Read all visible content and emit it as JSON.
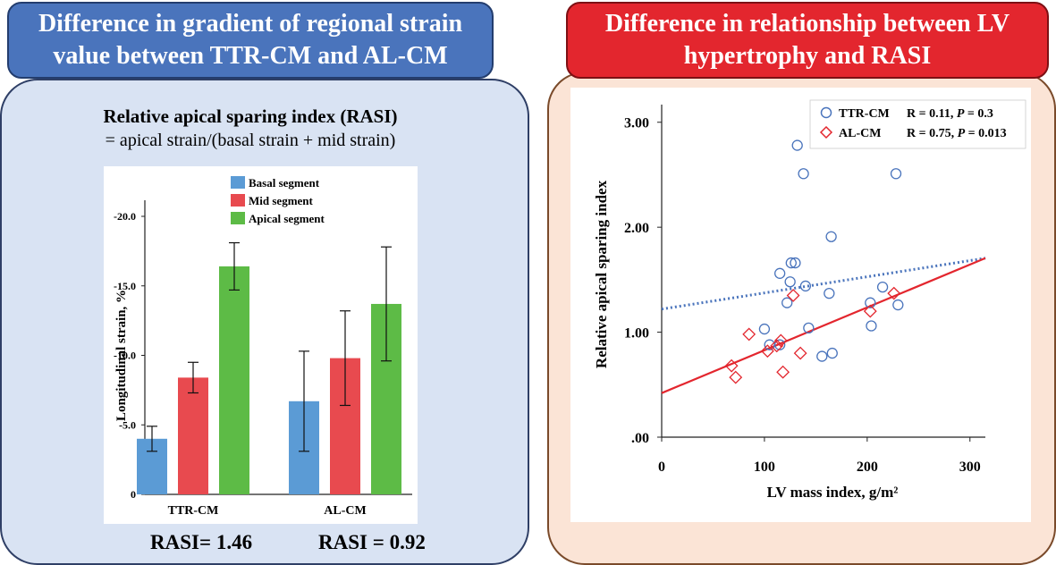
{
  "left": {
    "banner": "Difference in gradient of regional strain value between TTR-CM and AL-CM",
    "banner_line1": "Difference in gradient of regional strain",
    "banner_line2": "value between TTR-CM and AL-CM",
    "rasi_title": "Relative apical sparing index (RASI)",
    "rasi_formula": "= apical strain/(basal strain + mid strain)",
    "rasi_ttr": "RASI= 1.46",
    "rasi_al": "RASI = 0.92"
  },
  "right": {
    "banner_line1": "Difference in relationship between LV",
    "banner_line2": "hypertrophy and RASI"
  },
  "chart_data": [
    {
      "type": "bar",
      "ylabel": "Longitudinal strain, %",
      "ylim": [
        0,
        -20
      ],
      "yticks": [
        "0",
        "-5.0",
        "-10.0",
        "-15.0",
        "-20.0"
      ],
      "categories": [
        "TTR-CM",
        "AL-CM"
      ],
      "legend": "top-center",
      "series": [
        {
          "name": "Basal segment",
          "color": "#5b9bd5",
          "values": [
            -4.0,
            -6.7
          ],
          "err": [
            0.9,
            3.6
          ]
        },
        {
          "name": "Mid segment",
          "color": "#e84a4f",
          "values": [
            -8.4,
            -9.8
          ],
          "err": [
            1.1,
            3.4
          ]
        },
        {
          "name": "Apical segment",
          "color": "#5dbb46",
          "values": [
            -16.4,
            -13.7
          ],
          "err": [
            1.7,
            4.1
          ]
        }
      ]
    },
    {
      "type": "scatter",
      "xlabel": "LV mass index, g/m²",
      "ylabel": "Relative apical sparing index",
      "xlim": [
        0,
        315
      ],
      "ylim": [
        0,
        3.1
      ],
      "xticks": [
        "0",
        "100",
        "200",
        "300"
      ],
      "yticks": [
        ".00",
        "1.00",
        "2.00",
        "3.00"
      ],
      "legend": "top-right",
      "series": [
        {
          "name": "TTR-CM",
          "stat_r": "R = 0.11, ",
          "stat_p": "= 0.3",
          "marker": "circle",
          "color": "#4a74bc",
          "fit": {
            "style": "dotted",
            "intercept": 1.22,
            "slope": 0.00154
          },
          "points": [
            [
              100,
              1.03
            ],
            [
              105,
              0.88
            ],
            [
              115,
              0.88
            ],
            [
              115,
              1.56
            ],
            [
              122,
              1.28
            ],
            [
              125,
              1.48
            ],
            [
              126,
              1.66
            ],
            [
              130,
              1.66
            ],
            [
              132,
              2.78
            ],
            [
              138,
              2.51
            ],
            [
              140,
              1.44
            ],
            [
              143,
              1.04
            ],
            [
              156,
              0.77
            ],
            [
              163,
              1.37
            ],
            [
              165,
              1.91
            ],
            [
              166,
              0.8
            ],
            [
              203,
              1.28
            ],
            [
              204,
              1.06
            ],
            [
              215,
              1.43
            ],
            [
              228,
              2.51
            ],
            [
              230,
              1.26
            ]
          ]
        },
        {
          "name": "AL-CM",
          "stat_r": "R = 0.75, ",
          "stat_p": "= 0.013",
          "marker": "diamond",
          "color": "#e3262e",
          "fit": {
            "style": "solid",
            "intercept": 0.42,
            "slope": 0.00408
          },
          "points": [
            [
              68,
              0.68
            ],
            [
              72,
              0.57
            ],
            [
              85,
              0.98
            ],
            [
              103,
              0.82
            ],
            [
              112,
              0.87
            ],
            [
              116,
              0.92
            ],
            [
              118,
              0.62
            ],
            [
              128,
              1.35
            ],
            [
              135,
              0.8
            ],
            [
              203,
              1.2
            ],
            [
              226,
              1.37
            ]
          ]
        }
      ]
    }
  ]
}
